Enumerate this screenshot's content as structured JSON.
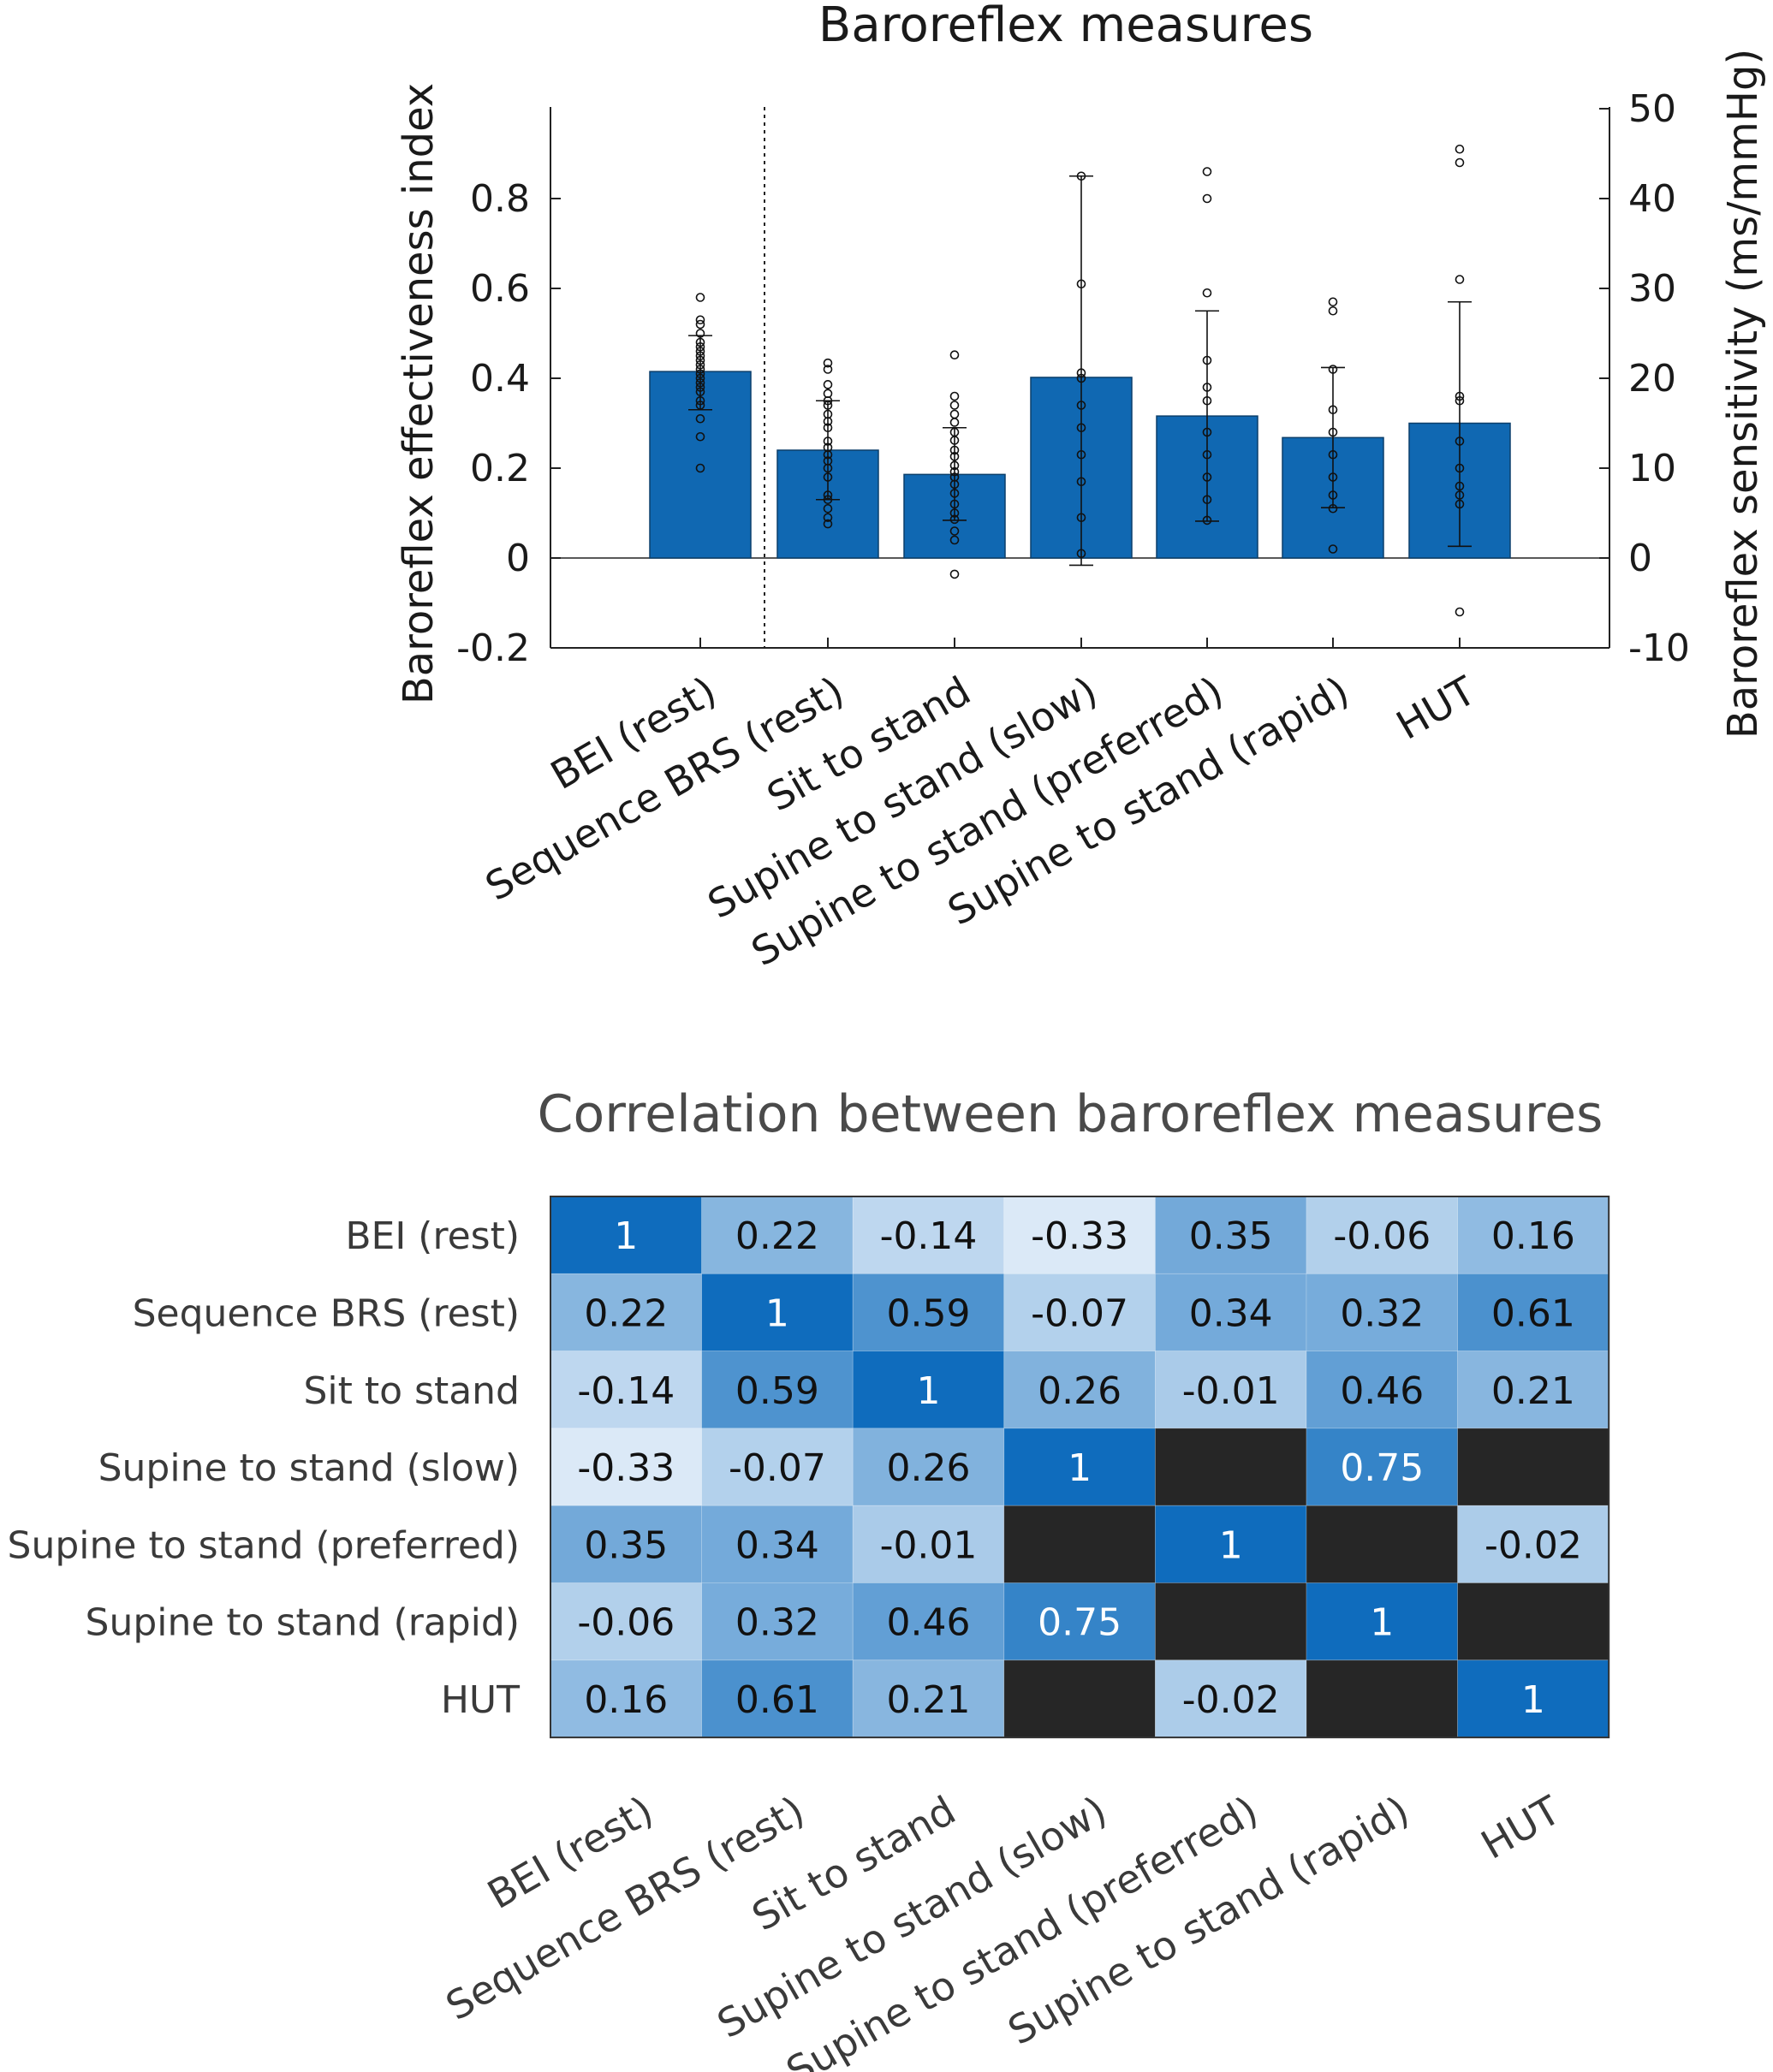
{
  "chart_data": [
    {
      "type": "bar",
      "title": "Baroreflex measures",
      "ylabel_left": "Baroreflex effectiveness index",
      "ylabel_right": "Baroreflex sensitivity (ms/mmHg)",
      "ylim_left": [
        -0.2,
        1.0
      ],
      "ylim_right": [
        -10,
        50
      ],
      "yticks_left": [
        "-0.2",
        "0",
        "0.2",
        "0.4",
        "0.6",
        "0.8"
      ],
      "yticks_right": [
        "-10",
        "0",
        "10",
        "20",
        "30",
        "40",
        "50"
      ],
      "categories": [
        "BEI (rest)",
        "Sequence BRS (rest)",
        "Sit to stand",
        "Supine to stand (slow)",
        "Supine to stand (preferred)",
        "Supine to stand (rapid)",
        "HUT"
      ],
      "axis": [
        "left",
        "right",
        "right",
        "right",
        "right",
        "right",
        "right"
      ],
      "values": [
        0.415,
        12.0,
        9.3,
        20.1,
        15.8,
        13.4,
        15.0
      ],
      "error_low": [
        0.33,
        6.5,
        4.2,
        -0.8,
        4.1,
        5.6,
        1.3
      ],
      "error_high": [
        0.495,
        17.5,
        14.5,
        42.5,
        27.5,
        21.2,
        28.5
      ],
      "points": [
        [
          0.2,
          0.27,
          0.31,
          0.34,
          0.35,
          0.37,
          0.38,
          0.39,
          0.4,
          0.41,
          0.42,
          0.43,
          0.44,
          0.45,
          0.46,
          0.47,
          0.48,
          0.5,
          0.52,
          0.53,
          0.58
        ],
        [
          3.8,
          4.5,
          5.5,
          6.5,
          7.0,
          9.0,
          10.0,
          10.8,
          11.5,
          12.3,
          13.0,
          14.5,
          15.2,
          16.0,
          17.0,
          17.5,
          18.3,
          19.3,
          21.0,
          21.7
        ],
        [
          -1.8,
          2.0,
          3.0,
          4.3,
          5.0,
          6.0,
          7.2,
          8.2,
          9.0,
          9.6,
          10.3,
          11.3,
          12.0,
          13.1,
          14.0,
          15.1,
          16.0,
          17.0,
          18.0,
          22.6
        ],
        [
          0.5,
          4.5,
          8.5,
          11.5,
          14.5,
          17.0,
          20.0,
          20.6,
          30.5,
          42.5
        ],
        [
          4.2,
          6.5,
          9.0,
          11.5,
          14.0,
          17.5,
          19.0,
          22.0,
          29.5,
          40.0,
          43.0
        ],
        [
          1.0,
          5.5,
          7.0,
          9.0,
          11.5,
          14.0,
          16.5,
          21.0,
          27.5,
          28.5
        ],
        [
          -6.0,
          6.0,
          7.0,
          8.0,
          10.0,
          13.0,
          17.5,
          18.0,
          31.0,
          44.0,
          45.5
        ]
      ],
      "bar_color": "#1068b2"
    },
    {
      "type": "heatmap",
      "title": "Correlation between baroreflex measures",
      "labels": [
        "BEI (rest)",
        "Sequence BRS (rest)",
        "Sit to stand",
        "Supine to stand (slow)",
        "Supine to stand (preferred)",
        "Supine to stand (rapid)",
        "HUT"
      ],
      "matrix": [
        [
          "1",
          "0.22",
          "-0.14",
          "-0.33",
          "0.35",
          "-0.06",
          "0.16"
        ],
        [
          "0.22",
          "1",
          "0.59",
          "-0.07",
          "0.34",
          "0.32",
          "0.61"
        ],
        [
          "-0.14",
          "0.59",
          "1",
          "0.26",
          "-0.01",
          "0.46",
          "0.21"
        ],
        [
          "-0.33",
          "-0.07",
          "0.26",
          "1",
          "",
          "0.75",
          ""
        ],
        [
          "0.35",
          "0.34",
          "-0.01",
          "",
          "1",
          "",
          "-0.02"
        ],
        [
          "-0.06",
          "0.32",
          "0.46",
          "0.75",
          "",
          "1",
          ""
        ],
        [
          "0.16",
          "0.61",
          "0.21",
          "",
          "-0.02",
          "",
          "1"
        ]
      ],
      "missing_color": "#262626",
      "color_range": [
        "#e6f0fa",
        "#0f6cbd"
      ]
    }
  ]
}
